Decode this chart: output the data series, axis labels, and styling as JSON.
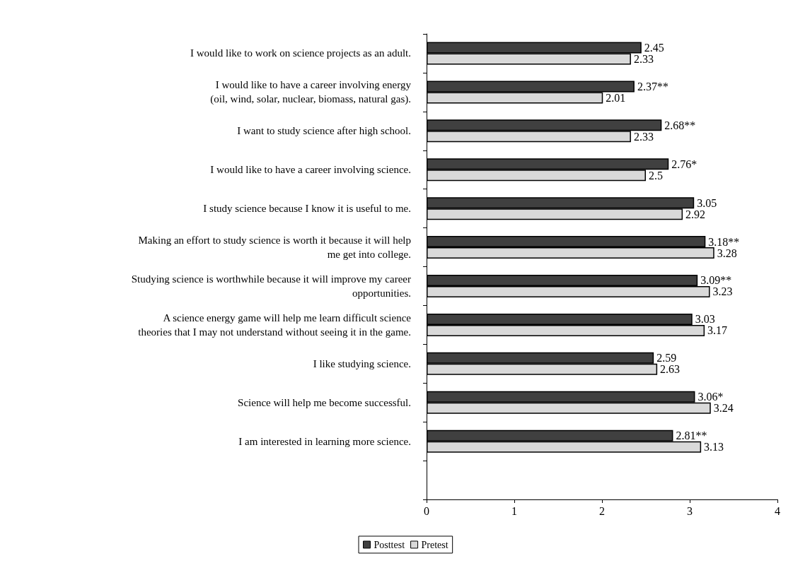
{
  "chart_data": {
    "type": "bar",
    "orientation": "horizontal",
    "categories": [
      "I would like to work on science projects as an adult.",
      "I would like to have a career involving energy\n(oil, wind, solar, nuclear, biomass, natural gas).",
      "I want to study science after high school.",
      "I would like to have a career involving science.",
      "I study science because I know it is useful to me.",
      "Making an effort to study science is worth it because it will help\nme get into college.",
      "Studying science is worthwhile because it will improve my career\nopportunities.",
      "A science energy game will help me learn difficult science\ntheories that I may not understand without seeing it in the game.",
      "I like studying science.",
      "Science will help me become successful.",
      "I am interested in learning more science.",
      null
    ],
    "series": [
      {
        "name": "Posttest",
        "color": "#404040",
        "values": [
          2.45,
          2.37,
          2.68,
          2.76,
          3.05,
          3.18,
          3.09,
          3.03,
          2.59,
          3.06,
          2.81,
          null
        ],
        "value_labels": [
          "2.45",
          "2.37**",
          "2.68**",
          "2.76*",
          "3.05",
          "3.18**",
          "3.09**",
          "3.03",
          "2.59",
          "3.06*",
          "2.81**",
          null
        ]
      },
      {
        "name": "Pretest",
        "color": "#d9d9d9",
        "values": [
          2.33,
          2.01,
          2.33,
          2.5,
          2.92,
          3.28,
          3.23,
          3.17,
          2.63,
          3.24,
          3.13,
          null
        ],
        "value_labels": [
          "2.33",
          "2.01",
          "2.33",
          "2.5",
          "2.92",
          "3.28",
          "3.23",
          "3.17",
          "2.63",
          "3.24",
          "3.13",
          null
        ]
      }
    ],
    "xlim": [
      0,
      4
    ],
    "xticks": [
      0,
      1,
      2,
      3,
      4
    ],
    "grid": false,
    "legend": "bottom"
  }
}
